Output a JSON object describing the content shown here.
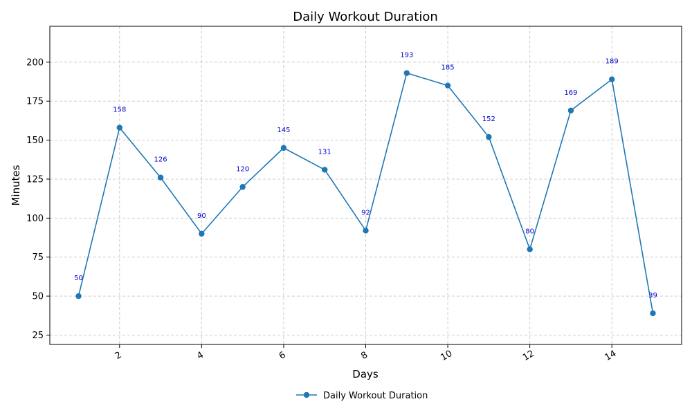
{
  "chart_data": {
    "type": "line",
    "title": "Daily Workout Duration",
    "xlabel": "Days",
    "ylabel": "Minutes",
    "xlim": [
      0.3,
      15.7
    ],
    "ylim": [
      19,
      223
    ],
    "xticks": [
      2,
      4,
      6,
      8,
      10,
      12,
      14
    ],
    "yticks": [
      25,
      50,
      75,
      100,
      125,
      150,
      175,
      200
    ],
    "grid": true,
    "legend_position": "bottom-center",
    "series": [
      {
        "name": "Daily Workout Duration",
        "color": "#1f77b4",
        "label_color": "#0000cc",
        "x": [
          1,
          2,
          3,
          4,
          5,
          6,
          7,
          8,
          9,
          10,
          11,
          12,
          13,
          14,
          15
        ],
        "values": [
          50,
          158,
          126,
          90,
          120,
          145,
          131,
          92,
          193,
          185,
          152,
          80,
          169,
          189,
          39
        ]
      }
    ]
  }
}
